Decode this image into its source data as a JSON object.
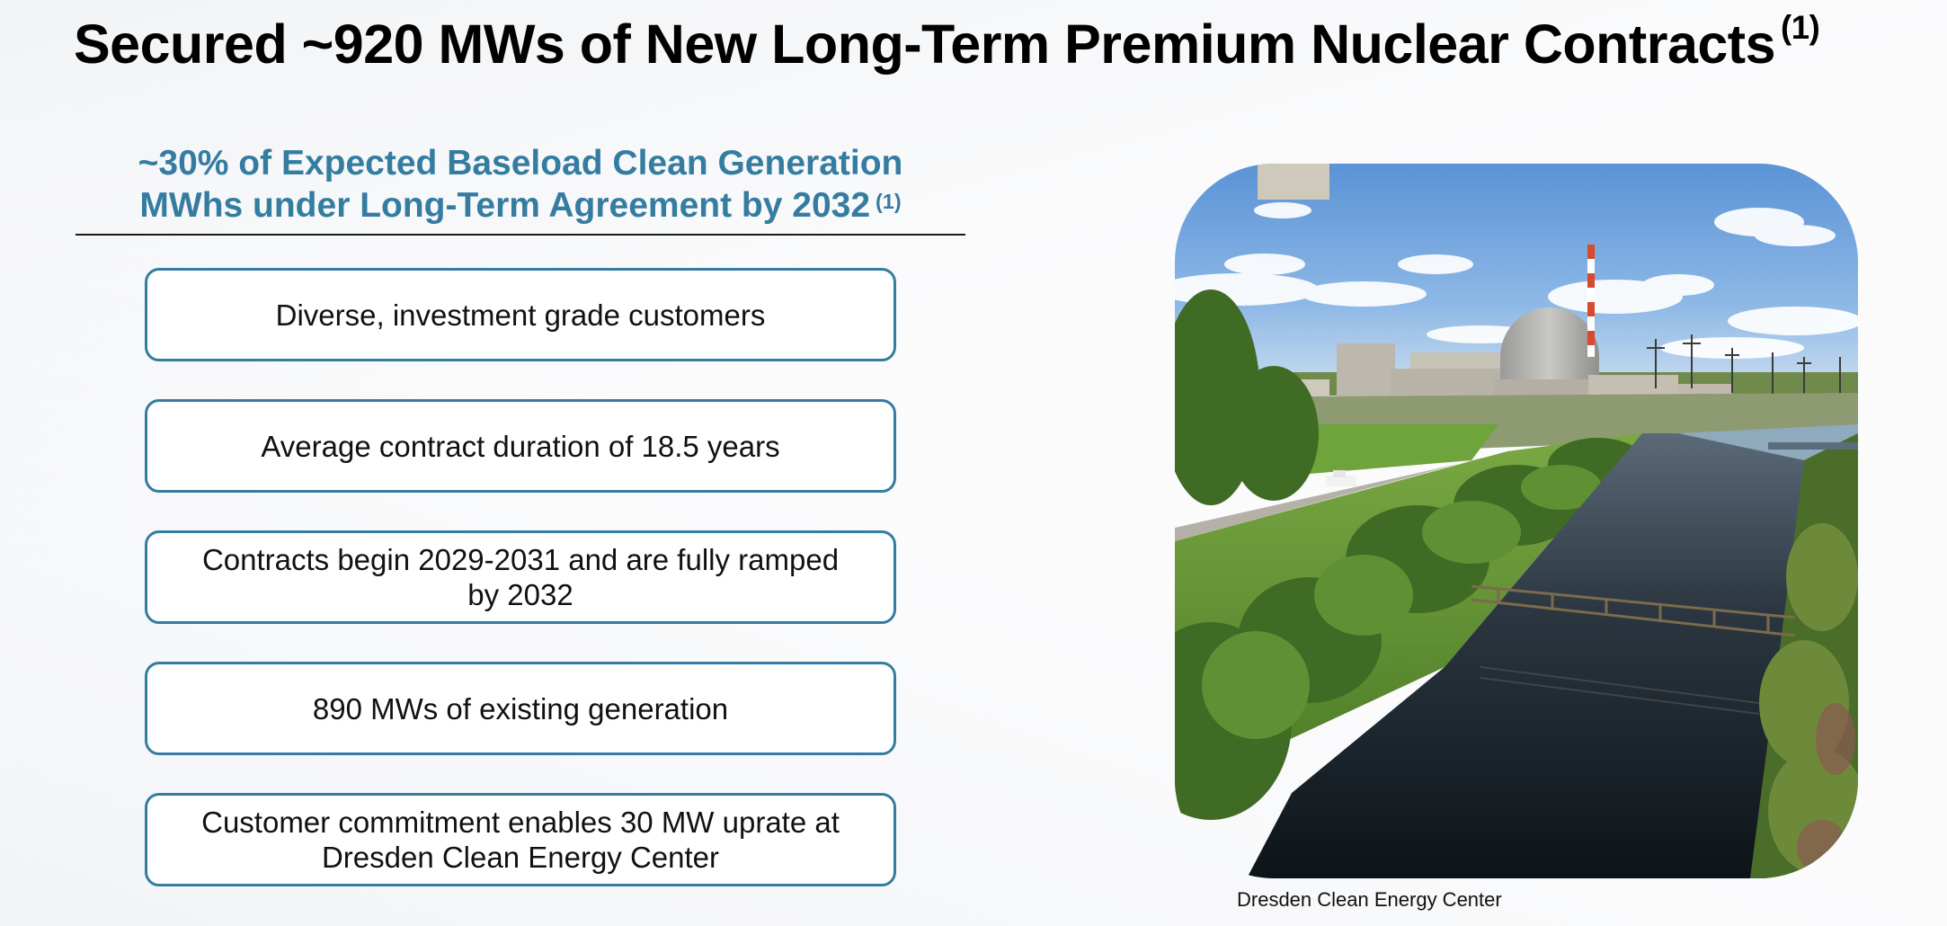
{
  "slide": {
    "title": "Secured ~920 MWs of New Long-Term Premium Nuclear Contracts",
    "title_footnote": "(1)",
    "subheading": {
      "line1": "~30% of Expected Baseload Clean Generation",
      "line2": "MWhs under Long-Term Agreement by 2032",
      "footnote": "(1)"
    },
    "highlights": [
      "Diverse, investment grade customers",
      "Average contract duration of 18.5 years",
      "Contracts begin 2029-2031 and are fully ramped by 2032",
      "890 MWs of existing generation",
      "Customer commitment enables 30 MW uprate at Dresden Clean Energy Center"
    ],
    "photo": {
      "caption": "Dresden Clean Energy Center",
      "subject": "nuclear-plant-photo"
    },
    "colors": {
      "accent": "#357ca1",
      "title": "#000000",
      "text": "#111111"
    }
  }
}
